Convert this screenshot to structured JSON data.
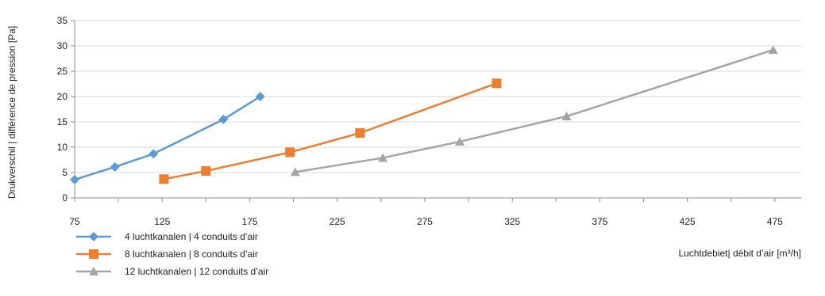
{
  "chart_data": {
    "type": "line",
    "title": "",
    "xlabel": "Luchtdebiet| débit d’air [m³/h]",
    "ylabel": "Drukverschil  | différence de pression [Pa]",
    "xlim": [
      75,
      490
    ],
    "ylim": [
      0,
      35
    ],
    "xticks": [
      "75",
      "125",
      "175",
      "225",
      "275",
      "325",
      "375",
      "425",
      "475"
    ],
    "yticks": [
      "0",
      "5",
      "10",
      "15",
      "20",
      "25",
      "30",
      "35"
    ],
    "grid": "horizontal",
    "legend_position": "bottom-left",
    "series": [
      {
        "name": "4 luchtkanalen | 4 conduits d’air",
        "color": "#5b9bd5",
        "marker": "diamond",
        "points": [
          [
            75,
            3.6
          ],
          [
            98,
            6.1
          ],
          [
            120,
            8.7
          ],
          [
            160,
            15.5
          ],
          [
            181,
            20
          ]
        ]
      },
      {
        "name": "8 luchtkanalen | 8 conduits d’air",
        "color": "#ed7d31",
        "marker": "square",
        "points": [
          [
            126,
            3.7
          ],
          [
            150,
            5.3
          ],
          [
            198,
            9
          ],
          [
            238,
            12.8
          ],
          [
            316,
            22.6
          ]
        ]
      },
      {
        "name": "12 luchtkanalen | 12 conduits d’air",
        "color": "#a5a5a5",
        "marker": "triangle",
        "points": [
          [
            201,
            5.1
          ],
          [
            251,
            7.9
          ],
          [
            295,
            11.1
          ],
          [
            356,
            16.1
          ],
          [
            474,
            29.2
          ]
        ]
      }
    ]
  }
}
